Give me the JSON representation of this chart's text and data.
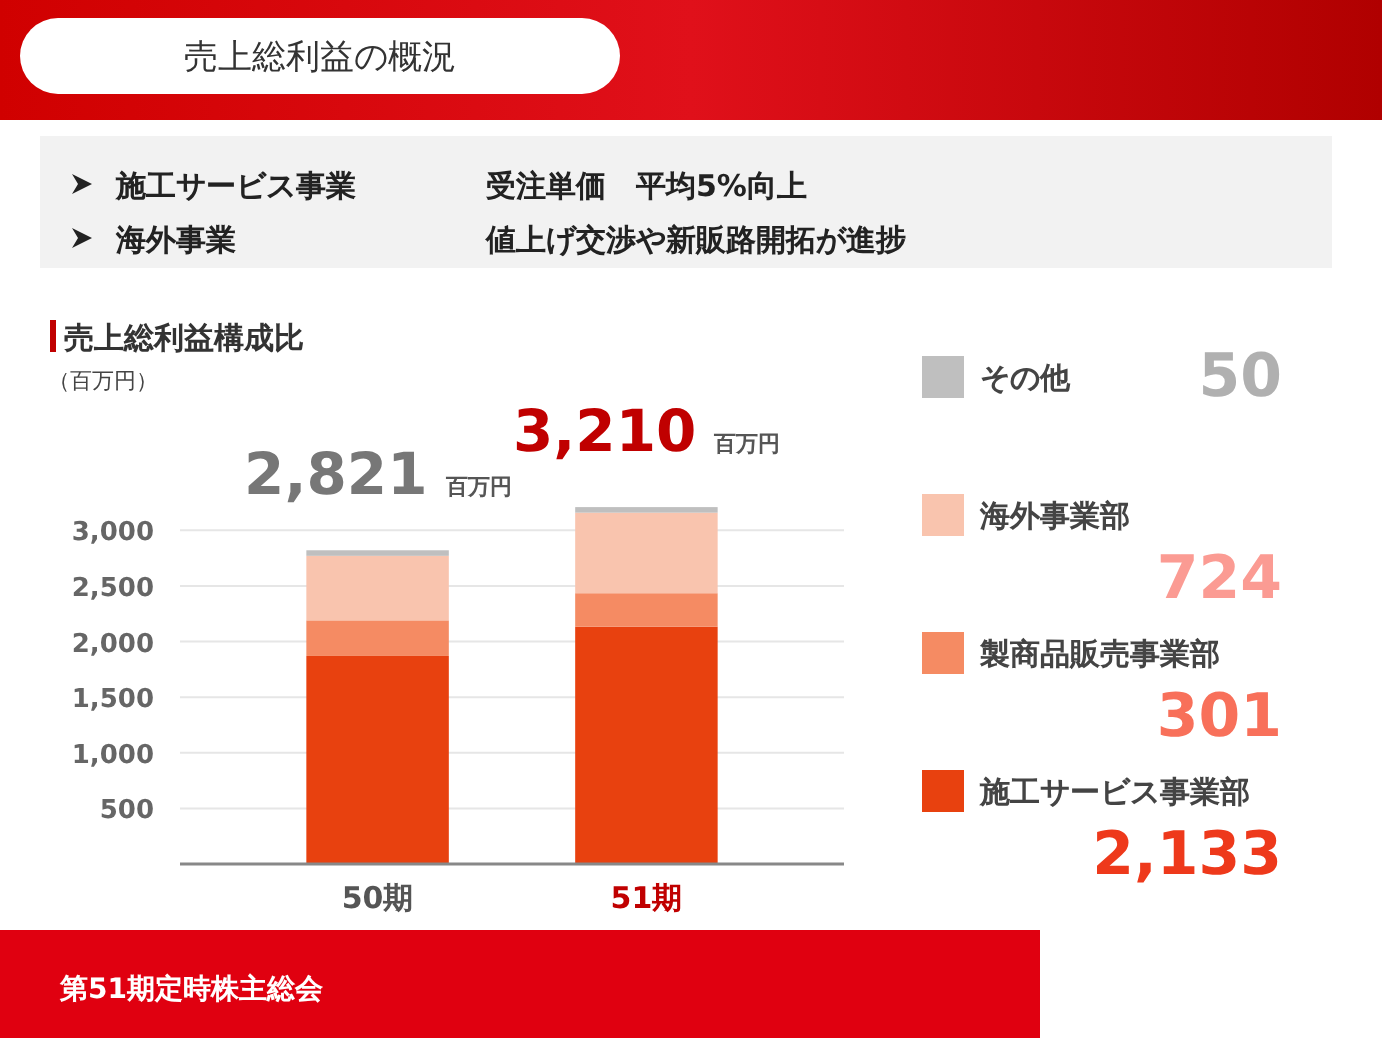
{
  "chart_data": {
    "type": "bar",
    "title": "売上総利益の概況",
    "subtitle": "売上総利益構成比",
    "annotations": [
      "施工サービス事業",
      "受注単価　平均5%向上",
      "海外事業",
      "値上げ交渉や新販路開拓が進捗",
      "百万円",
      "百万円",
      "（百万円）",
      "50",
      "724",
      "301",
      "2,133",
      "第51期定時株主総会"
    ],
    "categories": [
      "50期",
      "51期"
    ],
    "series": [
      {
        "name": "施工サービス事業部",
        "color": "#e8410f",
        "values": [
          1870,
          2133
        ]
      },
      {
        "name": "製商品販売事業部",
        "color": "#f58b63",
        "values": [
          320,
          301
        ]
      },
      {
        "name": "海外事業部",
        "color": "#f9c4ae",
        "values": [
          580,
          724
        ]
      },
      {
        "name": "その他",
        "color": "#bfbfbf",
        "values": [
          50,
          50
        ]
      }
    ],
    "stacked": true,
    "totals": [
      "2,821",
      "3,210"
    ],
    "ylim": [
      0,
      3200
    ],
    "yticks": [
      500,
      {
        "value": 1000,
        "label": "1,000"
      },
      {
        "value": 1500,
        "label": "1,500"
      },
      {
        "value": 2000,
        "label": "2,000"
      },
      {
        "value": 2500,
        "label": "2,500"
      },
      {
        "value": 3000,
        "label": "3,000"
      }
    ],
    "grid": "y",
    "legend": "right"
  }
}
